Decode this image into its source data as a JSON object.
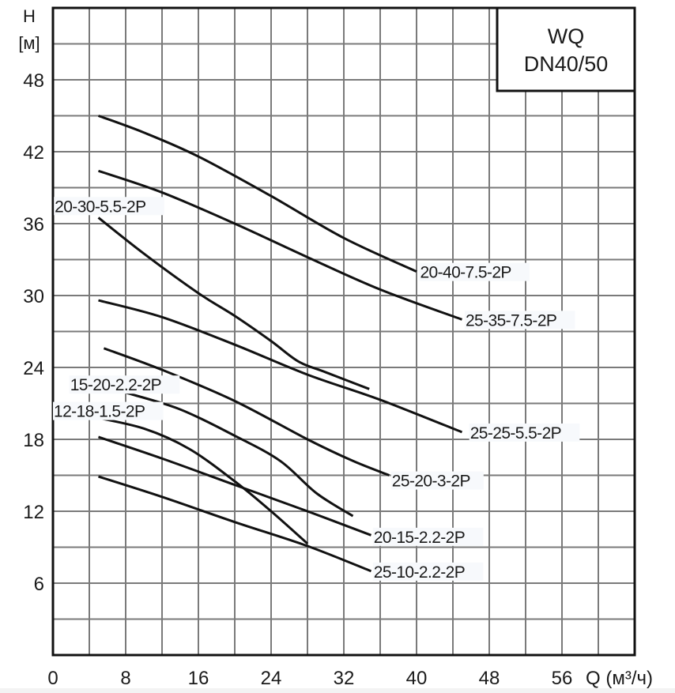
{
  "chart_data": {
    "type": "line",
    "title": "WQ DN40/50",
    "title_lines": [
      "WQ",
      "DN40/50"
    ],
    "xlabel": "Q (м³/ч)",
    "ylabel_lines": [
      "H",
      "[м]"
    ],
    "xlim": [
      0,
      64
    ],
    "ylim": [
      0,
      54
    ],
    "x_ticks": [
      0,
      8,
      16,
      24,
      32,
      40,
      48,
      56
    ],
    "y_ticks": [
      6,
      12,
      18,
      24,
      30,
      36,
      42,
      48
    ],
    "x_grid_step": 4,
    "y_grid_step": 3,
    "grid": true,
    "legend": "inline labels",
    "series": [
      {
        "name": "20-40-7.5-2P",
        "label_pos": [
          40.3,
          32.0
        ],
        "points": [
          [
            5,
            45
          ],
          [
            10,
            43.6
          ],
          [
            16,
            41.6
          ],
          [
            24,
            38.3
          ],
          [
            32,
            34.8
          ],
          [
            40,
            32
          ]
        ]
      },
      {
        "name": "25-35-7.5-2P",
        "label_pos": [
          45.3,
          28.0
        ],
        "points": [
          [
            5,
            40.4
          ],
          [
            12,
            38.6
          ],
          [
            20,
            36
          ],
          [
            28,
            33.2
          ],
          [
            36,
            30.5
          ],
          [
            45,
            28
          ]
        ]
      },
      {
        "name": "20-30-5.5-2P",
        "label_pos": [
          0.1,
          37.5
        ],
        "points": [
          [
            5,
            36.5
          ],
          [
            10,
            33.5
          ],
          [
            16,
            30.2
          ],
          [
            20,
            28.3
          ],
          [
            24,
            26.2
          ],
          [
            27,
            24.5
          ],
          [
            30,
            23.6
          ],
          [
            34.8,
            22.2
          ]
        ]
      },
      {
        "name": "25-25-5.5-2P",
        "label_pos": [
          45.8,
          18.6
        ],
        "points": [
          [
            5,
            29.6
          ],
          [
            12,
            28.2
          ],
          [
            20,
            25.9
          ],
          [
            28,
            23.4
          ],
          [
            36,
            21.3
          ],
          [
            45,
            18.6
          ]
        ]
      },
      {
        "name": "25-20-3-2P",
        "label_pos": [
          37.2,
          14.6
        ],
        "points": [
          [
            5.6,
            25.6
          ],
          [
            12,
            23.8
          ],
          [
            20,
            21.2
          ],
          [
            28,
            18
          ],
          [
            33,
            16.2
          ],
          [
            37,
            15
          ]
        ]
      },
      {
        "name": "15-20-2.2-2P",
        "label_pos": [
          1.8,
          22.6
        ],
        "points": [
          [
            8,
            21.9
          ],
          [
            14,
            20.5
          ],
          [
            20,
            18.3
          ],
          [
            25,
            16.2
          ],
          [
            29,
            13.5
          ],
          [
            33,
            11.6
          ]
        ]
      },
      {
        "name": "12-18-1.5-2P",
        "label_pos": [
          0.0,
          20.4
        ],
        "points": [
          [
            4.2,
            19.9
          ],
          [
            10,
            18.9
          ],
          [
            15,
            17.2
          ],
          [
            20,
            14.5
          ],
          [
            24,
            12
          ],
          [
            28,
            9.3
          ]
        ]
      },
      {
        "name": "20-15-2.2-2P",
        "label_pos": [
          35.2,
          9.9
        ],
        "points": [
          [
            5,
            18.2
          ],
          [
            12,
            16.4
          ],
          [
            20,
            14.2
          ],
          [
            28,
            12
          ],
          [
            35,
            10
          ]
        ]
      },
      {
        "name": "25-10-2.2-2P",
        "label_pos": [
          35.2,
          7.0
        ],
        "points": [
          [
            5,
            14.9
          ],
          [
            12,
            13.2
          ],
          [
            20,
            11.1
          ],
          [
            28,
            9.1
          ],
          [
            35,
            7
          ]
        ]
      }
    ]
  },
  "colors": {
    "line": "#111111",
    "grid": "#7a7a7a",
    "axis": "#111111",
    "label_bg": "#f7f9fc",
    "text": "#1a1a1a"
  }
}
